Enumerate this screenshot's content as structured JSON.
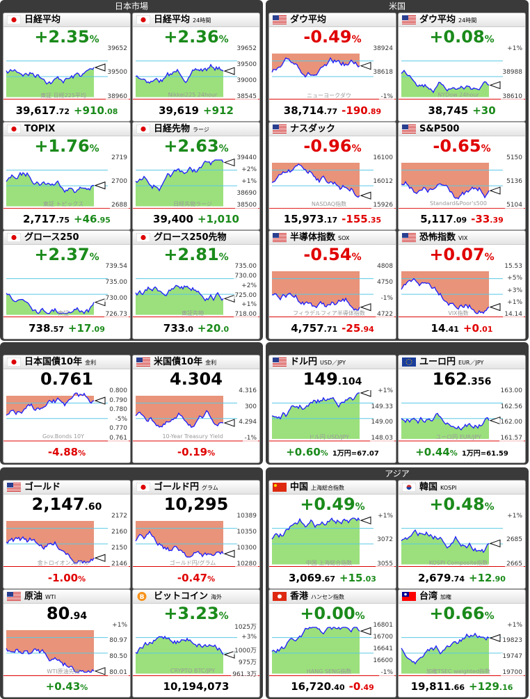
{
  "panels": [
    {
      "title": "日本市場",
      "tiles": [
        {
          "name": "日経平均",
          "flag": "jp",
          "fill": "green",
          "top": {
            "text": [
              "+2.35",
              "%"
            ],
            "color": "green"
          },
          "labels": [
            "39652",
            "39500",
            "38960"
          ],
          "watermark": "東証 日経225平均",
          "bottom": [
            {
              "text": [
                "39,617",
                ".72"
              ],
              "color": "black"
            },
            {
              "text": [
                "+910",
                ".08"
              ],
              "color": "green"
            }
          ]
        },
        {
          "name": "日経平均",
          "sub": "24時間",
          "flag": "jp",
          "fill": "green",
          "top": {
            "text": [
              "+2.36",
              "%"
            ],
            "color": "green"
          },
          "labels": [
            "39652",
            "39500",
            "39000",
            "38545"
          ],
          "watermark": "Nikkei225 24hour",
          "bottom": [
            {
              "text": [
                "39,619"
              ],
              "color": "black"
            },
            {
              "text": [
                "+912"
              ],
              "color": "green"
            }
          ]
        },
        {
          "name": "TOPIX",
          "flag": "jp",
          "fill": "green",
          "top": {
            "text": [
              "+1.76",
              "%"
            ],
            "color": "green"
          },
          "labels": [
            "2719",
            "2700",
            "2688"
          ],
          "watermark": "東証 トピックス",
          "bottom": [
            {
              "text": [
                "2,717",
                ".75"
              ],
              "color": "black"
            },
            {
              "text": [
                "+46",
                ".95"
              ],
              "color": "green"
            }
          ]
        },
        {
          "name": "日経先物",
          "sub": "ラージ",
          "flag": "jp",
          "fill": "green",
          "top": {
            "text": [
              "+2.63",
              "%"
            ],
            "color": "green"
          },
          "labels": [
            "39440",
            "+2%",
            "+1%",
            "38690",
            "38500"
          ],
          "watermark": "日経先物ラージ",
          "bottom": [
            {
              "text": [
                "39,400"
              ],
              "color": "black"
            },
            {
              "text": [
                "+1,010"
              ],
              "color": "green"
            }
          ]
        },
        {
          "name": "グロース250",
          "flag": "jp",
          "fill": "green",
          "top": {
            "text": [
              "+2.37",
              "%"
            ],
            "color": "green"
          },
          "labels": [
            "739.54",
            "735.00",
            "730.00",
            "726.73"
          ],
          "watermark": "東証",
          "bottom": [
            {
              "text": [
                "738",
                ".57"
              ],
              "color": "black"
            },
            {
              "text": [
                "+17",
                ".09"
              ],
              "color": "green"
            }
          ]
        },
        {
          "name": "グロース250先物",
          "flag": "jp",
          "fill": "green",
          "top": {
            "text": [
              "+2.81",
              "%"
            ],
            "color": "green"
          },
          "labels": [
            "735.00",
            "730.00",
            "+2%",
            "725.00",
            "+1%",
            "718.00"
          ],
          "watermark": "東証先物",
          "bottom": [
            {
              "text": [
                "733",
                ".0"
              ],
              "color": "black"
            },
            {
              "text": [
                "+20",
                ".0"
              ],
              "color": "green"
            }
          ]
        }
      ]
    },
    {
      "title": "米国",
      "tiles": [
        {
          "name": "ダウ平均",
          "flag": "us",
          "fill": "red",
          "top": {
            "text": [
              "-0.49",
              "%"
            ],
            "color": "red"
          },
          "labels": [
            "38924",
            "38618",
            "-1%"
          ],
          "watermark": "ニューヨークダウ",
          "bottom": [
            {
              "text": [
                "38,714",
                ".77"
              ],
              "color": "black"
            },
            {
              "text": [
                "-190",
                ".89"
              ],
              "color": "red"
            }
          ]
        },
        {
          "name": "ダウ平均",
          "sub": "24時間",
          "flag": "us",
          "fill": "green",
          "top": {
            "text": [
              "+0.08",
              "%"
            ],
            "color": "green"
          },
          "labels": [
            "+1%",
            "38988",
            "38610"
          ],
          "watermark": "NYDow 24hour",
          "bottom": [
            {
              "text": [
                "38,745"
              ],
              "color": "black"
            },
            {
              "text": [
                "+30"
              ],
              "color": "green"
            }
          ]
        },
        {
          "name": "ナスダック",
          "flag": "us",
          "fill": "red",
          "top": {
            "text": [
              "-0.96",
              "%"
            ],
            "color": "red"
          },
          "labels": [
            "16100",
            "16012",
            "15926"
          ],
          "watermark": "NASDAQ指数",
          "bottom": [
            {
              "text": [
                "15,973",
                ".17"
              ],
              "color": "black"
            },
            {
              "text": [
                "-155",
                ".35"
              ],
              "color": "red"
            }
          ]
        },
        {
          "name": "S&P500",
          "flag": "us",
          "fill": "red",
          "top": {
            "text": [
              "-0.65",
              "%"
            ],
            "color": "red"
          },
          "labels": [
            "5150",
            "5136",
            "5104"
          ],
          "watermark": "Standard&Poor's500",
          "bottom": [
            {
              "text": [
                "5,117",
                ".09"
              ],
              "color": "black"
            },
            {
              "text": [
                "-33",
                ".39"
              ],
              "color": "red"
            }
          ]
        },
        {
          "name": "半導体指数",
          "sub": "SOX",
          "flag": "us",
          "fill": "red",
          "top": {
            "text": [
              "-0.54",
              "%"
            ],
            "color": "red"
          },
          "labels": [
            "4808",
            "4750",
            "-1%",
            "4722"
          ],
          "watermark": "フィラデルフィア半導体指数",
          "bottom": [
            {
              "text": [
                "4,757",
                ".71"
              ],
              "color": "black"
            },
            {
              "text": [
                "-25",
                ".94"
              ],
              "color": "red"
            }
          ]
        },
        {
          "name": "恐怖指数",
          "sub": "VIX",
          "flag": "us",
          "fill": "red",
          "top": {
            "text": [
              "+0.07",
              "%"
            ],
            "color": "red"
          },
          "labels": [
            "15.53",
            "+5%",
            "+3%",
            "+1%",
            "14.14"
          ],
          "watermark": "VIX指数",
          "bottom": [
            {
              "text": [
                "14",
                ".41"
              ],
              "color": "black"
            },
            {
              "text": [
                "+0",
                ".01"
              ],
              "color": "red"
            }
          ]
        }
      ]
    },
    {
      "tiles": [
        {
          "name": "日本国債10年",
          "sub": "金利",
          "flag": "jp",
          "fill": "red",
          "top": {
            "text": [
              "0.761"
            ],
            "color": "black"
          },
          "labels": [
            "0.800",
            "0.790",
            "0.780",
            "-5%",
            "0.770",
            "0.761"
          ],
          "watermark": "Gov.Bonds 10Y",
          "bottom": [
            {
              "text": [
                "-4.88",
                "%"
              ],
              "color": "red"
            }
          ]
        },
        {
          "name": "米国債10年",
          "sub": "金利",
          "flag": "us",
          "fill": "red",
          "top": {
            "text": [
              "4.304"
            ],
            "color": "black"
          },
          "labels": [
            "4.316",
            "300",
            "4.294",
            "-1%"
          ],
          "watermark": "10-Year Treasury Yield",
          "bottom": [
            {
              "text": [
                "-0.19",
                "%"
              ],
              "color": "red"
            }
          ]
        }
      ]
    },
    {
      "tiles": [
        {
          "name": "ドル円",
          "sub": "USD／JPY",
          "flag": "us",
          "fill": "green",
          "top": {
            "text": [
              "149",
              ".104"
            ],
            "color": "black"
          },
          "labels": [
            "+1%",
            "149.33",
            "149.00",
            "148.03"
          ],
          "watermark": "ドル円 USD/JPY",
          "bottom": [
            {
              "text": [
                "+0.60",
                "%"
              ],
              "color": "green"
            },
            {
              "text": [
                "1万円=67.07"
              ],
              "color": "black"
            }
          ]
        },
        {
          "name": "ユーロ円",
          "sub": "EUR／JPY",
          "flag": "eu",
          "fill": "green",
          "top": {
            "text": [
              "162",
              ".356"
            ],
            "color": "black"
          },
          "labels": [
            "163.00",
            "162.56",
            "162.00",
            "161.57"
          ],
          "watermark": "ユーロ円 EUR/JPY",
          "bottom": [
            {
              "text": [
                "+0.44",
                "%"
              ],
              "color": "green"
            },
            {
              "text": [
                "1万円=61.59"
              ],
              "color": "black"
            }
          ]
        }
      ]
    },
    {
      "tiles": [
        {
          "name": "ゴールド",
          "flag": "us",
          "fill": "red",
          "top": {
            "text": [
              "2,147",
              ".60"
            ],
            "color": "black"
          },
          "labels": [
            "2172",
            "2160",
            "2150",
            "2146"
          ],
          "watermark": "金トロイオンス/ドル",
          "bottom": [
            {
              "text": [
                "-1.00",
                "%"
              ],
              "color": "red"
            }
          ]
        },
        {
          "name": "ゴールド円",
          "sub": "グラム",
          "flag": "jp",
          "fill": "red",
          "top": {
            "text": [
              "10,295"
            ],
            "color": "black"
          },
          "labels": [
            "10389",
            "10350",
            "10300",
            "10280"
          ],
          "watermark": "ゴールド円/グラム",
          "bottom": [
            {
              "text": [
                "-0.47",
                "%"
              ],
              "color": "red"
            }
          ]
        },
        {
          "name": "原油",
          "sub": "WTI",
          "flag": "us",
          "fill": "red",
          "top": {
            "text": [
              "80",
              ".94"
            ],
            "color": "black"
          },
          "labels": [
            "+1%",
            "80.97",
            "80.50",
            "80.01"
          ],
          "watermark": "WTI原油先物",
          "bottom": [
            {
              "text": [
                "+0.43",
                "%"
              ],
              "color": "green"
            }
          ]
        },
        {
          "name": "ビットコイン",
          "sub": "海外",
          "flag": "btc",
          "fill": "green",
          "top": {
            "text": [
              "+3.23",
              "%"
            ],
            "color": "green"
          },
          "labels": [
            "1025万",
            "+3%",
            "1000万",
            "975万",
            "961.3万"
          ],
          "watermark": "CRYPTO BTC/JPY",
          "bottom": [
            {
              "text": [
                "10,194,073"
              ],
              "color": "black"
            }
          ]
        }
      ]
    },
    {
      "title": "アジア",
      "tiles": [
        {
          "name": "中国",
          "sub": "上海総合指数",
          "flag": "cn",
          "fill": "green",
          "top": {
            "text": [
              "+0.49",
              "%"
            ],
            "color": "green"
          },
          "labels": [
            "+1%",
            "3072",
            "3055"
          ],
          "watermark": "中国 上海総合指数",
          "bottom": [
            {
              "text": [
                "3,069",
                ".67"
              ],
              "color": "black"
            },
            {
              "text": [
                "+15",
                ".03"
              ],
              "color": "green"
            }
          ]
        },
        {
          "name": "韓国",
          "sub": "KOSPI",
          "flag": "kr",
          "fill": "green",
          "top": {
            "text": [
              "+0.48",
              "%"
            ],
            "color": "green"
          },
          "labels": [
            "+1%",
            "2685",
            "2665"
          ],
          "watermark": "KOSPI Composite指数",
          "bottom": [
            {
              "text": [
                "2,679",
                ".74"
              ],
              "color": "black"
            },
            {
              "text": [
                "+12",
                ".90"
              ],
              "color": "green"
            }
          ]
        },
        {
          "name": "香港",
          "sub": "ハンセン指数",
          "flag": "hk",
          "fill": "green",
          "top": {
            "text": [
              "+0.00",
              "%"
            ],
            "color": "green"
          },
          "labels": [
            "16801",
            "16700",
            "16641",
            "16600",
            "-1%"
          ],
          "watermark": "HANG SENG指数",
          "bottom": [
            {
              "text": [
                "16,720",
                ".40"
              ],
              "color": "black"
            },
            {
              "text": [
                "-0",
                ".49"
              ],
              "color": "red"
            }
          ]
        },
        {
          "name": "台湾",
          "sub": "加権",
          "flag": "tw",
          "fill": "green",
          "top": {
            "text": [
              "+0.66",
              "%"
            ],
            "color": "green"
          },
          "labels": [
            "+1%",
            "19823",
            "19747",
            "19700"
          ],
          "watermark": "加権TSEC weighted指数",
          "bottom": [
            {
              "text": [
                "19,811",
                ".66"
              ],
              "color": "black"
            },
            {
              "text": [
                "+129",
                ".16"
              ],
              "color": "green"
            }
          ]
        }
      ]
    }
  ]
}
